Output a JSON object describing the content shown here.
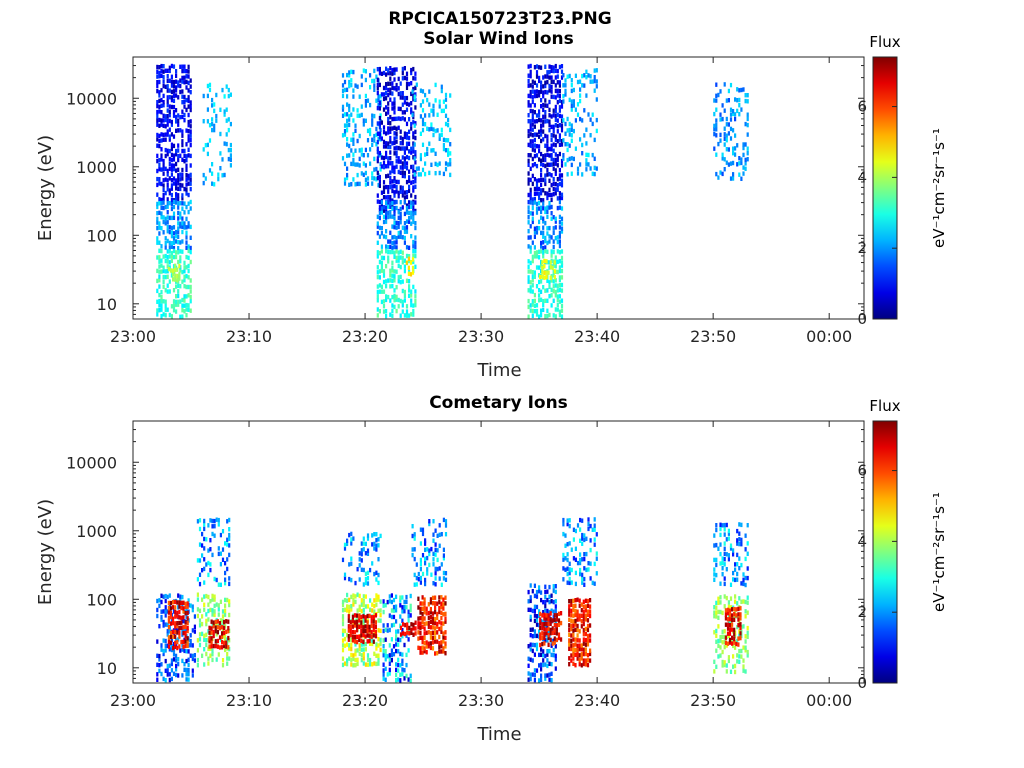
{
  "figure_title": "RPCICA150723T23.PNG",
  "chart_data": [
    {
      "type": "heatmap",
      "title": "Solar Wind Ions",
      "xlabel": "Time",
      "ylabel": "Energy (eV)",
      "y_scale": "log",
      "ylim": [
        6,
        40000
      ],
      "x_ticks": [
        "23:00",
        "23:10",
        "23:20",
        "23:30",
        "23:40",
        "23:50",
        "00:00"
      ],
      "x_range_minutes": [
        0,
        63
      ],
      "y_ticks": [
        10,
        100,
        1000,
        10000
      ],
      "y_tick_labels": [
        "10",
        "100",
        "1000",
        "10000"
      ],
      "colorbar": {
        "label_top": "Flux",
        "units": "eV⁻¹cm⁻²sr⁻¹s⁻¹",
        "range": [
          0,
          7.4
        ],
        "ticks": [
          0,
          2,
          4,
          6
        ],
        "tick_labels": [
          "0",
          "2",
          "4",
          "6"
        ],
        "colormap": "jet"
      },
      "blobs": [
        {
          "t": [
            2.0,
            5.0
          ],
          "e": [
            300,
            30000
          ],
          "v": [
            0.3,
            1.4
          ],
          "density": 0.65
        },
        {
          "t": [
            2.0,
            5.0
          ],
          "e": [
            60,
            300
          ],
          "v": [
            1.4,
            2.6
          ],
          "density": 0.6
        },
        {
          "t": [
            2.0,
            5.0
          ],
          "e": [
            6,
            60
          ],
          "v": [
            2.6,
            3.6
          ],
          "density": 0.55
        },
        {
          "t": [
            3.0,
            4.5
          ],
          "e": [
            20,
            40
          ],
          "v": [
            3.8,
            4.4
          ],
          "density": 0.4
        },
        {
          "t": [
            6.0,
            8.5
          ],
          "e": [
            500,
            15000
          ],
          "v": [
            1.8,
            2.8
          ],
          "density": 0.3
        },
        {
          "t": [
            18.0,
            21.5
          ],
          "e": [
            500,
            25000
          ],
          "v": [
            1.6,
            2.8
          ],
          "density": 0.35
        },
        {
          "t": [
            21.0,
            24.5
          ],
          "e": [
            200,
            30000
          ],
          "v": [
            0.2,
            1.4
          ],
          "density": 0.6
        },
        {
          "t": [
            21.0,
            24.5
          ],
          "e": [
            60,
            300
          ],
          "v": [
            1.2,
            2.6
          ],
          "density": 0.55
        },
        {
          "t": [
            21.0,
            24.5
          ],
          "e": [
            6,
            60
          ],
          "v": [
            2.6,
            3.6
          ],
          "density": 0.55
        },
        {
          "t": [
            23.5,
            24.3
          ],
          "e": [
            25,
            45
          ],
          "v": [
            4.4,
            5.0
          ],
          "density": 0.6
        },
        {
          "t": [
            24.0,
            27.5
          ],
          "e": [
            700,
            15000
          ],
          "v": [
            1.8,
            2.8
          ],
          "density": 0.3
        },
        {
          "t": [
            34.0,
            37.0
          ],
          "e": [
            300,
            30000
          ],
          "v": [
            0.2,
            1.4
          ],
          "density": 0.65
        },
        {
          "t": [
            34.0,
            37.0
          ],
          "e": [
            60,
            300
          ],
          "v": [
            1.2,
            2.6
          ],
          "density": 0.6
        },
        {
          "t": [
            34.0,
            37.0
          ],
          "e": [
            6,
            60
          ],
          "v": [
            2.6,
            3.6
          ],
          "density": 0.6
        },
        {
          "t": [
            35.0,
            36.5
          ],
          "e": [
            22,
            45
          ],
          "v": [
            4.2,
            4.8
          ],
          "density": 0.6
        },
        {
          "t": [
            37.0,
            40.0
          ],
          "e": [
            700,
            25000
          ],
          "v": [
            1.6,
            2.8
          ],
          "density": 0.3
        },
        {
          "t": [
            50.0,
            53.0
          ],
          "e": [
            600,
            15000
          ],
          "v": [
            1.4,
            2.6
          ],
          "density": 0.3
        }
      ]
    },
    {
      "type": "heatmap",
      "title": "Cometary Ions",
      "xlabel": "Time",
      "ylabel": "Energy (eV)",
      "y_scale": "log",
      "ylim": [
        6,
        40000
      ],
      "x_ticks": [
        "23:00",
        "23:10",
        "23:20",
        "23:30",
        "23:40",
        "23:50",
        "00:00"
      ],
      "x_range_minutes": [
        0,
        63
      ],
      "y_ticks": [
        10,
        100,
        1000,
        10000
      ],
      "y_tick_labels": [
        "10",
        "100",
        "1000",
        "10000"
      ],
      "colorbar": {
        "label_top": "Flux",
        "units": "eV⁻¹cm⁻²sr⁻¹s⁻¹",
        "range": [
          0,
          7.4
        ],
        "ticks": [
          0,
          2,
          4,
          6
        ],
        "tick_labels": [
          "0",
          "2",
          "4",
          "6"
        ],
        "colormap": "jet"
      },
      "blobs": [
        {
          "t": [
            2.0,
            5.5
          ],
          "e": [
            6,
            120
          ],
          "v": [
            0.5,
            2.5
          ],
          "density": 0.45
        },
        {
          "t": [
            3.0,
            4.8
          ],
          "e": [
            18,
            90
          ],
          "v": [
            5.6,
            7.4
          ],
          "density": 0.85
        },
        {
          "t": [
            5.5,
            8.3
          ],
          "e": [
            150,
            1400
          ],
          "v": [
            1.0,
            3.0
          ],
          "density": 0.35
        },
        {
          "t": [
            5.5,
            8.3
          ],
          "e": [
            10,
            120
          ],
          "v": [
            3.0,
            4.5
          ],
          "density": 0.5
        },
        {
          "t": [
            6.5,
            8.3
          ],
          "e": [
            18,
            45
          ],
          "v": [
            5.8,
            7.4
          ],
          "density": 0.85
        },
        {
          "t": [
            18.0,
            21.5
          ],
          "e": [
            150,
            900
          ],
          "v": [
            1.2,
            3.0
          ],
          "density": 0.35
        },
        {
          "t": [
            18.0,
            21.5
          ],
          "e": [
            10,
            120
          ],
          "v": [
            3.0,
            5.0
          ],
          "density": 0.6
        },
        {
          "t": [
            18.5,
            21.0
          ],
          "e": [
            22,
            55
          ],
          "v": [
            6.0,
            7.4
          ],
          "density": 0.85
        },
        {
          "t": [
            21.5,
            24.0
          ],
          "e": [
            6,
            120
          ],
          "v": [
            0.5,
            3.5
          ],
          "density": 0.45
        },
        {
          "t": [
            23.0,
            24.5
          ],
          "e": [
            28,
            45
          ],
          "v": [
            6.2,
            7.4
          ],
          "density": 0.85
        },
        {
          "t": [
            24.0,
            27.0
          ],
          "e": [
            150,
            1600
          ],
          "v": [
            1.0,
            3.0
          ],
          "density": 0.35
        },
        {
          "t": [
            24.5,
            27.0
          ],
          "e": [
            15,
            110
          ],
          "v": [
            5.4,
            7.4
          ],
          "density": 0.8
        },
        {
          "t": [
            34.0,
            36.5
          ],
          "e": [
            6,
            150
          ],
          "v": [
            0.3,
            2.5
          ],
          "density": 0.5
        },
        {
          "t": [
            35.0,
            37.0
          ],
          "e": [
            20,
            60
          ],
          "v": [
            5.8,
            7.4
          ],
          "density": 0.85
        },
        {
          "t": [
            37.0,
            40.0
          ],
          "e": [
            150,
            1400
          ],
          "v": [
            1.0,
            3.0
          ],
          "density": 0.35
        },
        {
          "t": [
            37.5,
            39.5
          ],
          "e": [
            10,
            100
          ],
          "v": [
            5.4,
            7.4
          ],
          "density": 0.85
        },
        {
          "t": [
            50.0,
            53.0
          ],
          "e": [
            150,
            1300
          ],
          "v": [
            1.0,
            3.0
          ],
          "density": 0.35
        },
        {
          "t": [
            50.0,
            53.0
          ],
          "e": [
            8,
            120
          ],
          "v": [
            3.0,
            4.5
          ],
          "density": 0.5
        },
        {
          "t": [
            51.0,
            52.5
          ],
          "e": [
            20,
            70
          ],
          "v": [
            5.8,
            7.4
          ],
          "density": 0.85
        }
      ]
    }
  ]
}
